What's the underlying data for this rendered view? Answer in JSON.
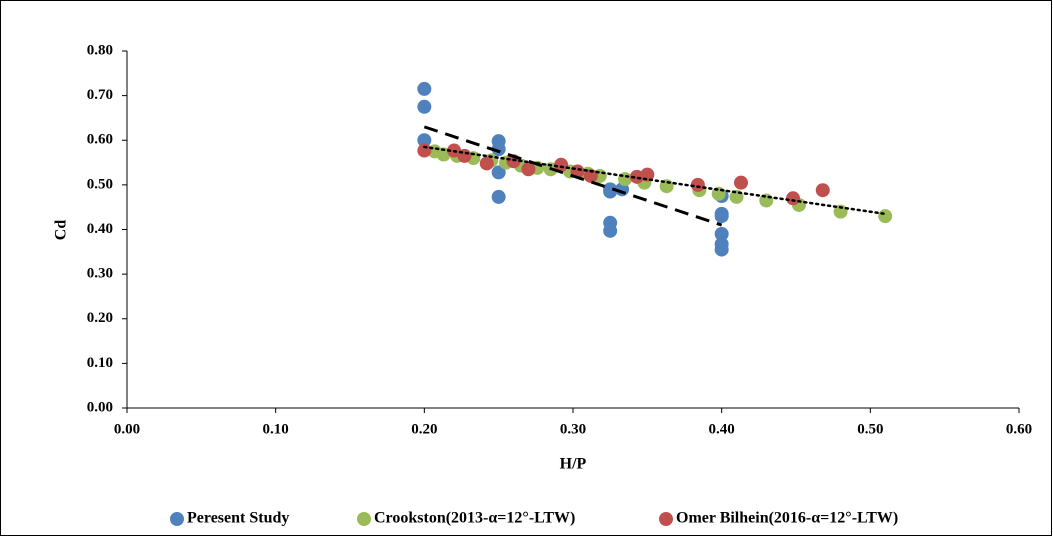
{
  "chart_data": {
    "type": "scatter",
    "xlabel": "H/P",
    "ylabel": "Cd",
    "xlim": [
      0,
      0.6
    ],
    "ylim": [
      0,
      0.8
    ],
    "xticks": [
      {
        "value": 0,
        "label": "0.00"
      },
      {
        "value": 0.1,
        "label": "0.10"
      },
      {
        "value": 0.2,
        "label": "0.20"
      },
      {
        "value": 0.3,
        "label": "0.30"
      },
      {
        "value": 0.4,
        "label": "0.40"
      },
      {
        "value": 0.5,
        "label": "0.50"
      },
      {
        "value": 0.6,
        "label": "0.60"
      }
    ],
    "yticks": [
      {
        "value": 0,
        "label": "0.00"
      },
      {
        "value": 0.1,
        "label": "0.10"
      },
      {
        "value": 0.2,
        "label": "0.20"
      },
      {
        "value": 0.3,
        "label": "0.30"
      },
      {
        "value": 0.4,
        "label": "0.40"
      },
      {
        "value": 0.5,
        "label": "0.50"
      },
      {
        "value": 0.6,
        "label": "0.60"
      },
      {
        "value": 0.7,
        "label": "0.70"
      },
      {
        "value": 0.8,
        "label": "0.80"
      }
    ],
    "grid": false,
    "legend": "bottom",
    "series": [
      {
        "name": "Peresent Study",
        "color": "#4f81bd",
        "x": [
          0.2,
          0.2,
          0.2,
          0.25,
          0.25,
          0.25,
          0.25,
          0.325,
          0.325,
          0.325,
          0.325,
          0.333,
          0.4,
          0.4,
          0.4,
          0.4,
          0.4,
          0.4
        ],
        "values": [
          0.715,
          0.675,
          0.6,
          0.598,
          0.58,
          0.528,
          0.473,
          0.49,
          0.485,
          0.415,
          0.397,
          0.49,
          0.475,
          0.435,
          0.43,
          0.39,
          0.367,
          0.355
        ]
      },
      {
        "name": "Crookston(2013-α=12°-LTW)",
        "color": "#9bbb59",
        "x": [
          0.207,
          0.213,
          0.222,
          0.233,
          0.245,
          0.255,
          0.265,
          0.276,
          0.285,
          0.298,
          0.31,
          0.318,
          0.335,
          0.348,
          0.363,
          0.385,
          0.398,
          0.41,
          0.43,
          0.452,
          0.48,
          0.51
        ],
        "values": [
          0.575,
          0.568,
          0.565,
          0.56,
          0.555,
          0.55,
          0.543,
          0.538,
          0.535,
          0.53,
          0.525,
          0.52,
          0.513,
          0.505,
          0.497,
          0.488,
          0.48,
          0.473,
          0.465,
          0.455,
          0.44,
          0.43
        ]
      },
      {
        "name": "Omer Bilhein(2016-α=12°-LTW)",
        "color": "#c0504d",
        "x": [
          0.2,
          0.22,
          0.227,
          0.242,
          0.26,
          0.27,
          0.292,
          0.303,
          0.312,
          0.343,
          0.35,
          0.384,
          0.413,
          0.448,
          0.468
        ],
        "values": [
          0.577,
          0.577,
          0.565,
          0.548,
          0.553,
          0.535,
          0.545,
          0.53,
          0.52,
          0.518,
          0.523,
          0.5,
          0.505,
          0.47,
          0.488
        ]
      }
    ],
    "trendlines": [
      {
        "style": "dashed",
        "x": [
          0.2,
          0.4
        ],
        "values": [
          0.63,
          0.41
        ]
      },
      {
        "style": "dotted",
        "x": [
          0.2,
          0.51
        ],
        "values": [
          0.585,
          0.435
        ]
      }
    ]
  }
}
